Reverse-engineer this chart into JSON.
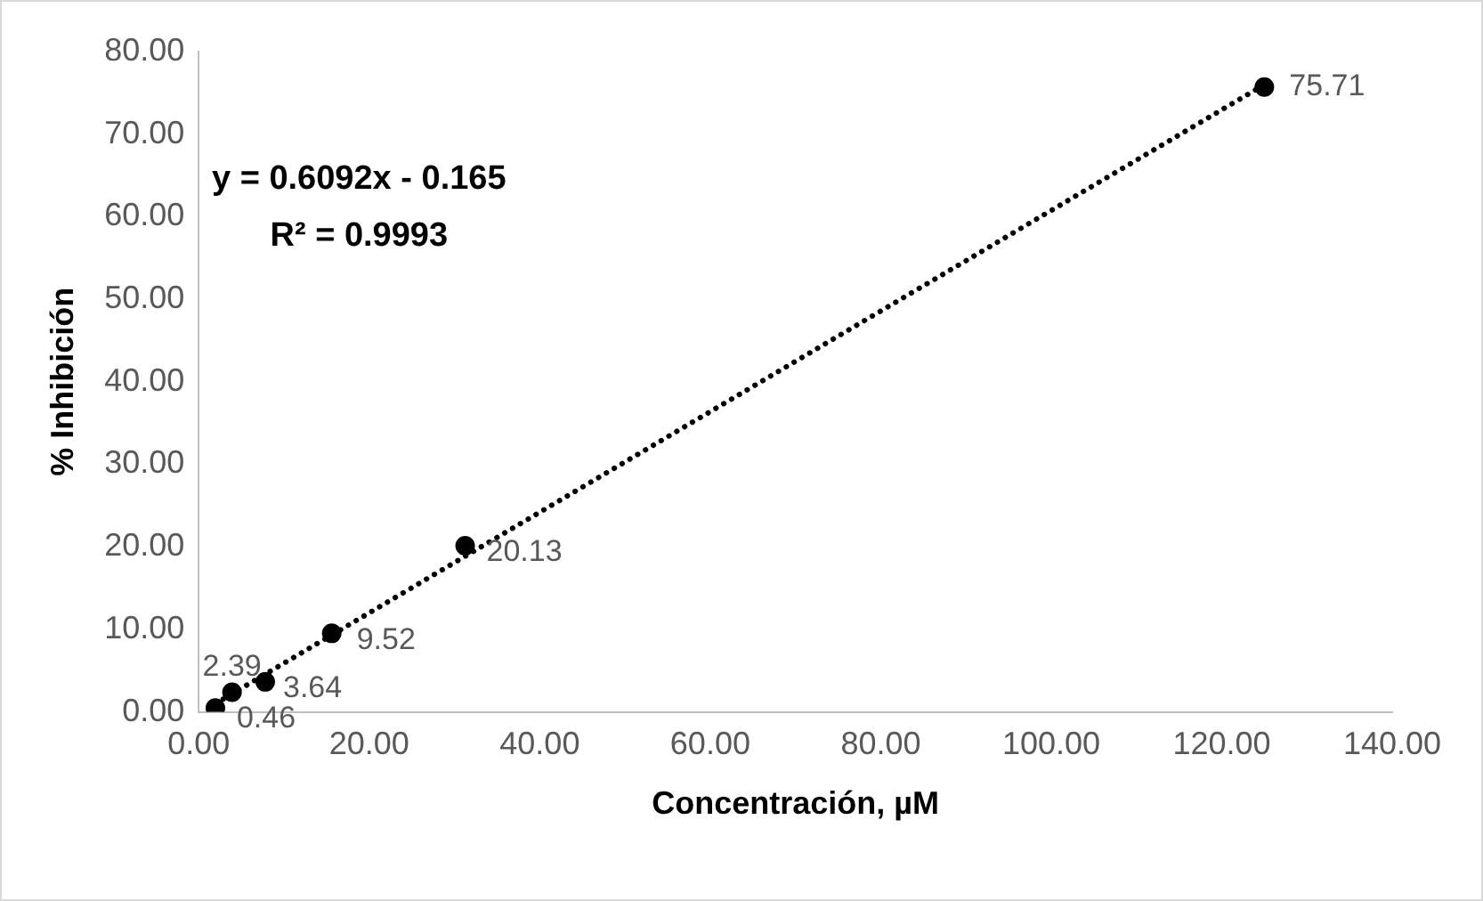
{
  "chart_data": {
    "type": "scatter",
    "xlabel": "Concentración, µM",
    "ylabel": "% Inhibición",
    "xlim": [
      0,
      140
    ],
    "xticks": [
      {
        "value": 0,
        "label": "0.00"
      },
      {
        "value": 20,
        "label": "20.00"
      },
      {
        "value": 40,
        "label": "40.00"
      },
      {
        "value": 60,
        "label": "60.00"
      },
      {
        "value": 80,
        "label": "80.00"
      },
      {
        "value": 100,
        "label": "100.00"
      },
      {
        "value": 120,
        "label": "120.00"
      },
      {
        "value": 140,
        "label": "140.00"
      }
    ],
    "ylim": [
      0,
      80
    ],
    "yticks": [
      {
        "value": 0,
        "label": "0.00"
      },
      {
        "value": 10,
        "label": "10.00"
      },
      {
        "value": 20,
        "label": "20.00"
      },
      {
        "value": 30,
        "label": "30.00"
      },
      {
        "value": 40,
        "label": "40.00"
      },
      {
        "value": 50,
        "label": "50.00"
      },
      {
        "value": 60,
        "label": "60.00"
      },
      {
        "value": 70,
        "label": "70.00"
      },
      {
        "value": 80,
        "label": "80.00"
      }
    ],
    "grid": false,
    "legend": false,
    "series": [
      {
        "color": "#000000",
        "marker": "circle",
        "x": [
          1.95,
          3.9,
          7.8,
          15.6,
          31.25,
          125
        ],
        "values": [
          0.46,
          2.39,
          3.64,
          9.52,
          20.13,
          75.71
        ],
        "value_labels": [
          "0.46",
          "2.39",
          "3.64",
          "9.52",
          "20.13",
          "75.71"
        ]
      },
      {
        "type": "line",
        "color": "#000000",
        "line_style": "dotted",
        "marker": "none",
        "x": [
          1.95,
          125
        ],
        "values": [
          1.0,
          76.0
        ]
      }
    ],
    "annotations": [
      "y = 0.6092x - 0.165",
      "R² = 0.9993"
    ]
  }
}
